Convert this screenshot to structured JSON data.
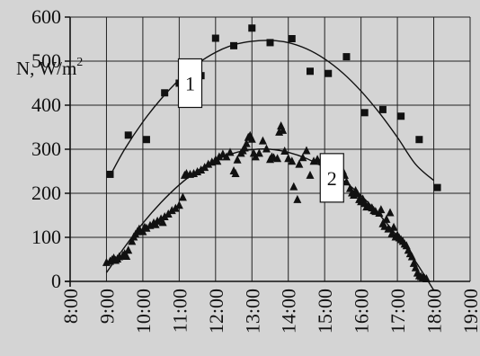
{
  "chart_data": {
    "type": "scatter",
    "title": "",
    "ylabel": "N, W/m",
    "ylabel_superscript": "2",
    "xlabel": "",
    "ylim": [
      0,
      600
    ],
    "xlim": [
      8,
      19
    ],
    "y_ticks": [
      0,
      100,
      200,
      300,
      400,
      500,
      600
    ],
    "y_tick_labels": [
      "0",
      "100",
      "200",
      "300",
      "400",
      "500",
      "600"
    ],
    "x_ticks": [
      8,
      9,
      10,
      11,
      12,
      13,
      14,
      15,
      16,
      17,
      18,
      19
    ],
    "x_tick_labels": [
      "8:00",
      "9:00",
      "10:00",
      "11:00",
      "12:00",
      "13:00",
      "14:00",
      "15:00",
      "16:00",
      "17:00",
      "18:00",
      "19:00"
    ],
    "grid": true,
    "legend": "none",
    "annotations": [
      {
        "text": "1",
        "x": 11.3,
        "y": 450
      },
      {
        "text": "2",
        "x": 15.2,
        "y": 235
      }
    ],
    "series": [
      {
        "marker": "square",
        "points": [
          [
            9.1,
            243
          ],
          [
            9.6,
            332
          ],
          [
            10.1,
            322
          ],
          [
            10.6,
            428
          ],
          [
            11.0,
            450
          ],
          [
            11.6,
            467
          ],
          [
            12.0,
            552
          ],
          [
            12.5,
            535
          ],
          [
            13.0,
            575
          ],
          [
            13.5,
            542
          ],
          [
            14.1,
            551
          ],
          [
            14.6,
            477
          ],
          [
            15.1,
            472
          ],
          [
            15.6,
            510
          ],
          [
            16.1,
            383
          ],
          [
            16.6,
            390
          ],
          [
            17.1,
            375
          ],
          [
            17.6,
            322
          ],
          [
            18.1,
            213
          ]
        ],
        "fit_curve": [
          [
            9.1,
            240
          ],
          [
            9.5,
            300
          ],
          [
            10.0,
            362
          ],
          [
            10.5,
            414
          ],
          [
            11.0,
            458
          ],
          [
            11.5,
            494
          ],
          [
            12.0,
            520
          ],
          [
            12.5,
            537
          ],
          [
            13.0,
            545
          ],
          [
            13.5,
            547
          ],
          [
            14.0,
            542
          ],
          [
            14.5,
            528
          ],
          [
            15.0,
            505
          ],
          [
            15.5,
            473
          ],
          [
            16.0,
            432
          ],
          [
            16.5,
            383
          ],
          [
            17.0,
            327
          ],
          [
            17.5,
            266
          ],
          [
            18.0,
            229
          ]
        ]
      },
      {
        "marker": "triangle",
        "points": [
          [
            9.0,
            42
          ],
          [
            9.1,
            45
          ],
          [
            9.15,
            48
          ],
          [
            9.2,
            52
          ],
          [
            9.25,
            47
          ],
          [
            9.3,
            50
          ],
          [
            9.35,
            55
          ],
          [
            9.45,
            58
          ],
          [
            9.5,
            62
          ],
          [
            9.55,
            56
          ],
          [
            9.6,
            70
          ],
          [
            9.7,
            90
          ],
          [
            9.75,
            100
          ],
          [
            9.8,
            106
          ],
          [
            9.85,
            112
          ],
          [
            9.9,
            118
          ],
          [
            10.0,
            112
          ],
          [
            10.05,
            122
          ],
          [
            10.1,
            120
          ],
          [
            10.2,
            126
          ],
          [
            10.3,
            132
          ],
          [
            10.35,
            128
          ],
          [
            10.4,
            136
          ],
          [
            10.5,
            141
          ],
          [
            10.55,
            133
          ],
          [
            10.6,
            146
          ],
          [
            10.7,
            152
          ],
          [
            10.8,
            160
          ],
          [
            10.9,
            165
          ],
          [
            11.0,
            172
          ],
          [
            11.1,
            190
          ],
          [
            11.15,
            240
          ],
          [
            11.2,
            244
          ],
          [
            11.3,
            242
          ],
          [
            11.4,
            244
          ],
          [
            11.5,
            248
          ],
          [
            11.6,
            252
          ],
          [
            11.7,
            258
          ],
          [
            11.8,
            265
          ],
          [
            11.9,
            270
          ],
          [
            12.0,
            275
          ],
          [
            12.05,
            272
          ],
          [
            12.1,
            282
          ],
          [
            12.2,
            288
          ],
          [
            12.3,
            282
          ],
          [
            12.4,
            292
          ],
          [
            12.5,
            250
          ],
          [
            12.55,
            244
          ],
          [
            12.6,
            275
          ],
          [
            12.7,
            290
          ],
          [
            12.75,
            296
          ],
          [
            12.8,
            302
          ],
          [
            12.85,
            312
          ],
          [
            12.9,
            326
          ],
          [
            12.95,
            330
          ],
          [
            13.0,
            322
          ],
          [
            13.05,
            290
          ],
          [
            13.1,
            282
          ],
          [
            13.2,
            290
          ],
          [
            13.3,
            318
          ],
          [
            13.4,
            300
          ],
          [
            13.5,
            276
          ],
          [
            13.55,
            282
          ],
          [
            13.6,
            280
          ],
          [
            13.7,
            278
          ],
          [
            13.75,
            338
          ],
          [
            13.8,
            352
          ],
          [
            13.85,
            342
          ],
          [
            13.9,
            295
          ],
          [
            14.0,
            278
          ],
          [
            14.1,
            272
          ],
          [
            14.15,
            214
          ],
          [
            14.25,
            185
          ],
          [
            14.3,
            265
          ],
          [
            14.4,
            280
          ],
          [
            14.5,
            296
          ],
          [
            14.6,
            240
          ],
          [
            14.7,
            272
          ],
          [
            14.8,
            276
          ],
          [
            14.9,
            272
          ],
          [
            15.0,
            262
          ],
          [
            15.1,
            268
          ],
          [
            15.2,
            276
          ],
          [
            15.25,
            272
          ],
          [
            15.3,
            268
          ],
          [
            15.4,
            265
          ],
          [
            15.45,
            255
          ],
          [
            15.5,
            250
          ],
          [
            15.55,
            240
          ],
          [
            15.6,
            225
          ],
          [
            15.7,
            210
          ],
          [
            15.75,
            200
          ],
          [
            15.8,
            195
          ],
          [
            15.85,
            205
          ],
          [
            15.9,
            198
          ],
          [
            15.95,
            185
          ],
          [
            16.0,
            180
          ],
          [
            16.05,
            186
          ],
          [
            16.1,
            176
          ],
          [
            16.15,
            168
          ],
          [
            16.2,
            172
          ],
          [
            16.3,
            166
          ],
          [
            16.35,
            160
          ],
          [
            16.4,
            158
          ],
          [
            16.5,
            154
          ],
          [
            16.55,
            162
          ],
          [
            16.6,
            130
          ],
          [
            16.65,
            124
          ],
          [
            16.7,
            140
          ],
          [
            16.75,
            118
          ],
          [
            16.8,
            155
          ],
          [
            16.85,
            108
          ],
          [
            16.9,
            122
          ],
          [
            16.95,
            100
          ],
          [
            17.0,
            104
          ],
          [
            17.05,
            98
          ],
          [
            17.1,
            94
          ],
          [
            17.15,
            90
          ],
          [
            17.2,
            84
          ],
          [
            17.25,
            80
          ],
          [
            17.3,
            70
          ],
          [
            17.35,
            62
          ],
          [
            17.4,
            55
          ],
          [
            17.45,
            40
          ],
          [
            17.5,
            30
          ],
          [
            17.55,
            18
          ],
          [
            17.6,
            12
          ],
          [
            17.65,
            10
          ],
          [
            17.7,
            8
          ],
          [
            17.75,
            6
          ],
          [
            17.8,
            5
          ]
        ],
        "fit_curve": [
          [
            9.0,
            20
          ],
          [
            9.5,
            78
          ],
          [
            10.0,
            132
          ],
          [
            10.5,
            179
          ],
          [
            11.0,
            219
          ],
          [
            11.5,
            251
          ],
          [
            12.0,
            275
          ],
          [
            12.5,
            291
          ],
          [
            13.0,
            299
          ],
          [
            13.5,
            300
          ],
          [
            14.0,
            293
          ],
          [
            14.5,
            279
          ],
          [
            15.0,
            258
          ],
          [
            15.5,
            230
          ],
          [
            16.0,
            195
          ],
          [
            16.5,
            152
          ],
          [
            17.0,
            102
          ],
          [
            17.5,
            45
          ],
          [
            18.0,
            -20
          ]
        ]
      }
    ]
  }
}
